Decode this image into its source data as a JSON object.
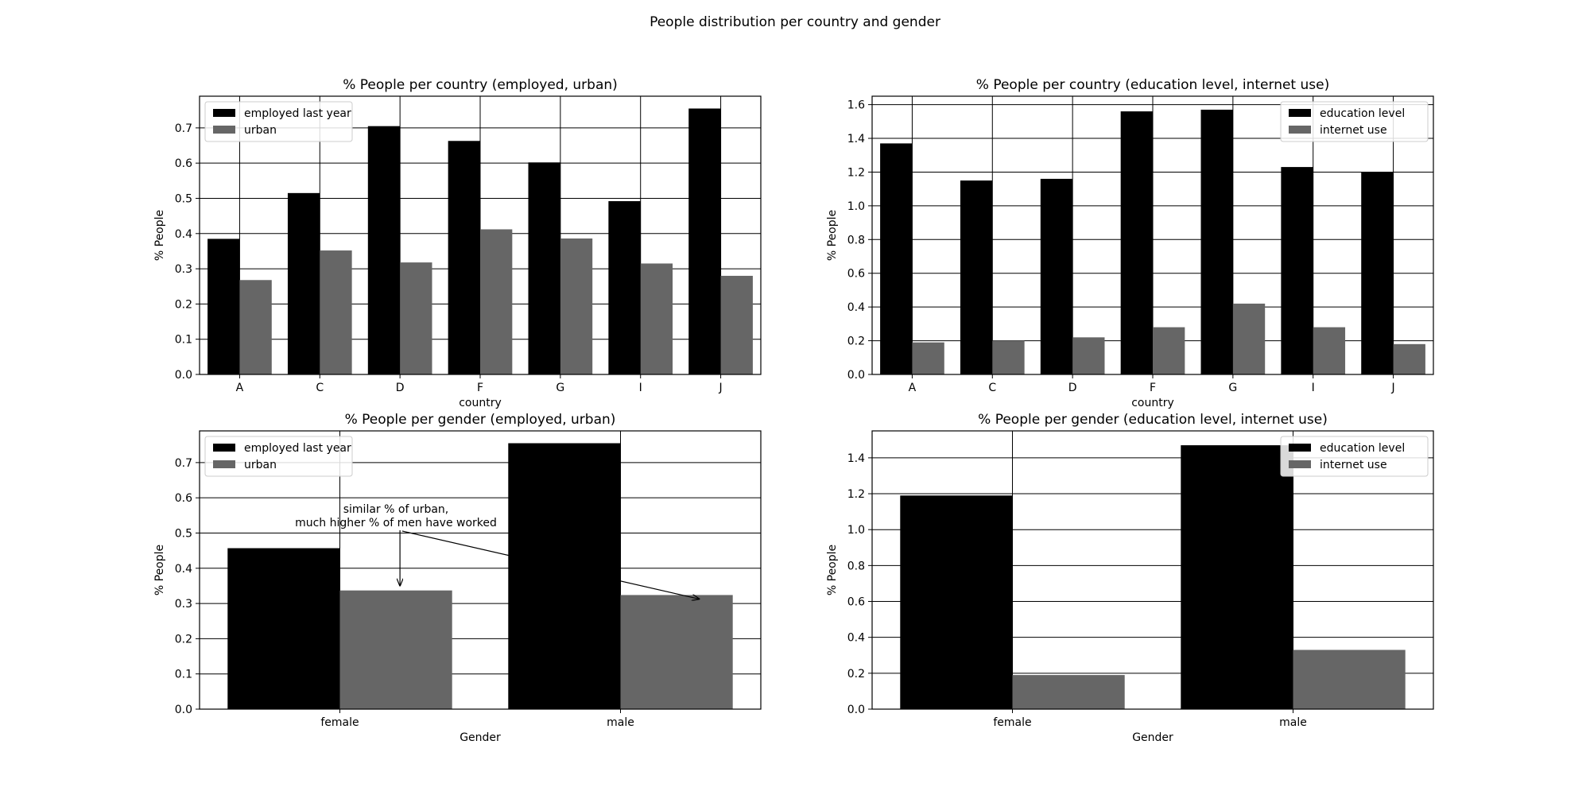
{
  "figure": {
    "suptitle": "People distribution per country and gender"
  },
  "chart_data": [
    {
      "type": "bar",
      "title": "% People per country (employed, urban)",
      "xlabel": "country",
      "ylabel": "% People",
      "categories": [
        "A",
        "C",
        "D",
        "F",
        "G",
        "I",
        "J"
      ],
      "ylim": [
        0,
        0.79
      ],
      "yticks": [
        0.0,
        0.1,
        0.2,
        0.3,
        0.4,
        0.5,
        0.6,
        0.7
      ],
      "grid": true,
      "legend": "upper left",
      "series": [
        {
          "name": "employed last year",
          "values": [
            0.385,
            0.515,
            0.705,
            0.663,
            0.602,
            0.492,
            0.755
          ]
        },
        {
          "name": "urban",
          "values": [
            0.268,
            0.352,
            0.318,
            0.412,
            0.386,
            0.315,
            0.28
          ]
        }
      ]
    },
    {
      "type": "bar",
      "title": "% People per country (education level, internet use)",
      "xlabel": "country",
      "ylabel": "% People",
      "categories": [
        "A",
        "C",
        "D",
        "F",
        "G",
        "I",
        "J"
      ],
      "ylim": [
        0,
        1.65
      ],
      "yticks": [
        0.0,
        0.2,
        0.4,
        0.6,
        0.8,
        1.0,
        1.2,
        1.4,
        1.6
      ],
      "grid": true,
      "legend": "upper right",
      "series": [
        {
          "name": "education level",
          "values": [
            1.37,
            1.15,
            1.16,
            1.56,
            1.57,
            1.23,
            1.2
          ]
        },
        {
          "name": "internet use",
          "values": [
            0.19,
            0.2,
            0.22,
            0.28,
            0.42,
            0.28,
            0.18
          ]
        }
      ]
    },
    {
      "type": "bar",
      "title": "% People per gender (employed, urban)",
      "xlabel": "Gender",
      "ylabel": "% People",
      "categories": [
        "female",
        "male"
      ],
      "ylim": [
        0,
        0.79
      ],
      "yticks": [
        0.0,
        0.1,
        0.2,
        0.3,
        0.4,
        0.5,
        0.6,
        0.7
      ],
      "grid": true,
      "legend": "upper left",
      "series": [
        {
          "name": "employed last year",
          "values": [
            0.457,
            0.755
          ]
        },
        {
          "name": "urban",
          "values": [
            0.337,
            0.324
          ]
        }
      ],
      "annotation": {
        "lines": [
          "similar % of urban,",
          "much higher % of men have worked"
        ]
      }
    },
    {
      "type": "bar",
      "title": "% People per gender (education level, internet use)",
      "xlabel": "Gender",
      "ylabel": "% People",
      "categories": [
        "female",
        "male"
      ],
      "ylim": [
        0,
        1.55
      ],
      "yticks": [
        0.0,
        0.2,
        0.4,
        0.6,
        0.8,
        1.0,
        1.2,
        1.4
      ],
      "grid": true,
      "legend": "upper right",
      "series": [
        {
          "name": "education level",
          "values": [
            1.19,
            1.47
          ]
        },
        {
          "name": "internet use",
          "values": [
            0.19,
            0.33
          ]
        }
      ]
    }
  ],
  "colors": {
    "series_1": "#000000",
    "series_2": "#666666",
    "grid": "#000000",
    "axes": "#000000",
    "text": "#000000"
  }
}
